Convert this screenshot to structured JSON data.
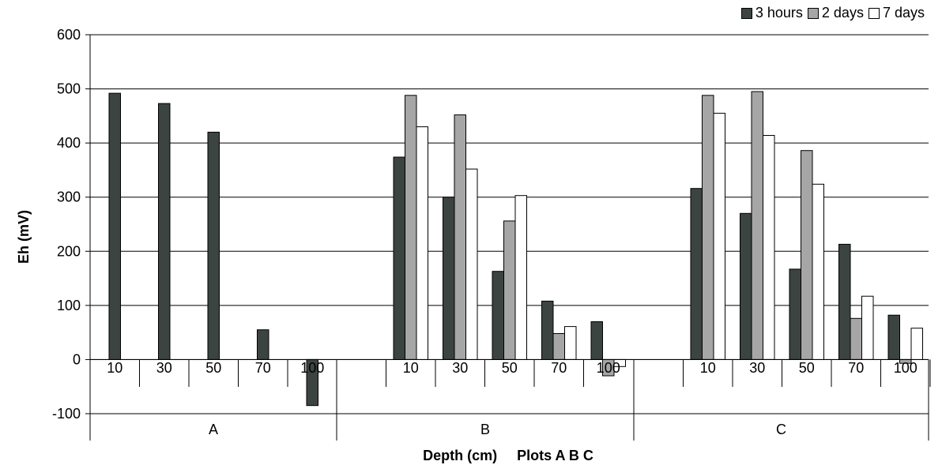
{
  "chart_data": {
    "type": "bar",
    "title": "",
    "xlabel": "Depth (cm)     Plots A B C",
    "ylabel": "Eh (mV)",
    "ylim": [
      -100,
      600
    ],
    "yticks": [
      -100,
      0,
      100,
      200,
      300,
      400,
      500,
      600
    ],
    "grid": true,
    "legend_position": "top-right",
    "groups": [
      {
        "label": "A",
        "categories": [
          "10",
          "30",
          "50",
          "70",
          "100"
        ]
      },
      {
        "label": "B",
        "categories": [
          "10",
          "30",
          "50",
          "70",
          "100"
        ]
      },
      {
        "label": "C",
        "categories": [
          "10",
          "30",
          "50",
          "70",
          "100"
        ]
      }
    ],
    "series": [
      {
        "name": "3 hours",
        "color": "#3c4442",
        "values": [
          [
            492,
            473,
            420,
            55,
            -85
          ],
          [
            374,
            300,
            163,
            108,
            70
          ],
          [
            316,
            270,
            167,
            213,
            82
          ]
        ]
      },
      {
        "name": "2 days",
        "color": "#a6a6a6",
        "values": [
          [
            null,
            null,
            null,
            null,
            null
          ],
          [
            488,
            452,
            256,
            48,
            -30
          ],
          [
            488,
            495,
            386,
            76,
            -7
          ]
        ]
      },
      {
        "name": "7 days",
        "color": "#ffffff",
        "values": [
          [
            null,
            null,
            null,
            null,
            null
          ],
          [
            430,
            352,
            303,
            61,
            -13
          ],
          [
            455,
            414,
            324,
            117,
            58
          ]
        ]
      }
    ]
  }
}
